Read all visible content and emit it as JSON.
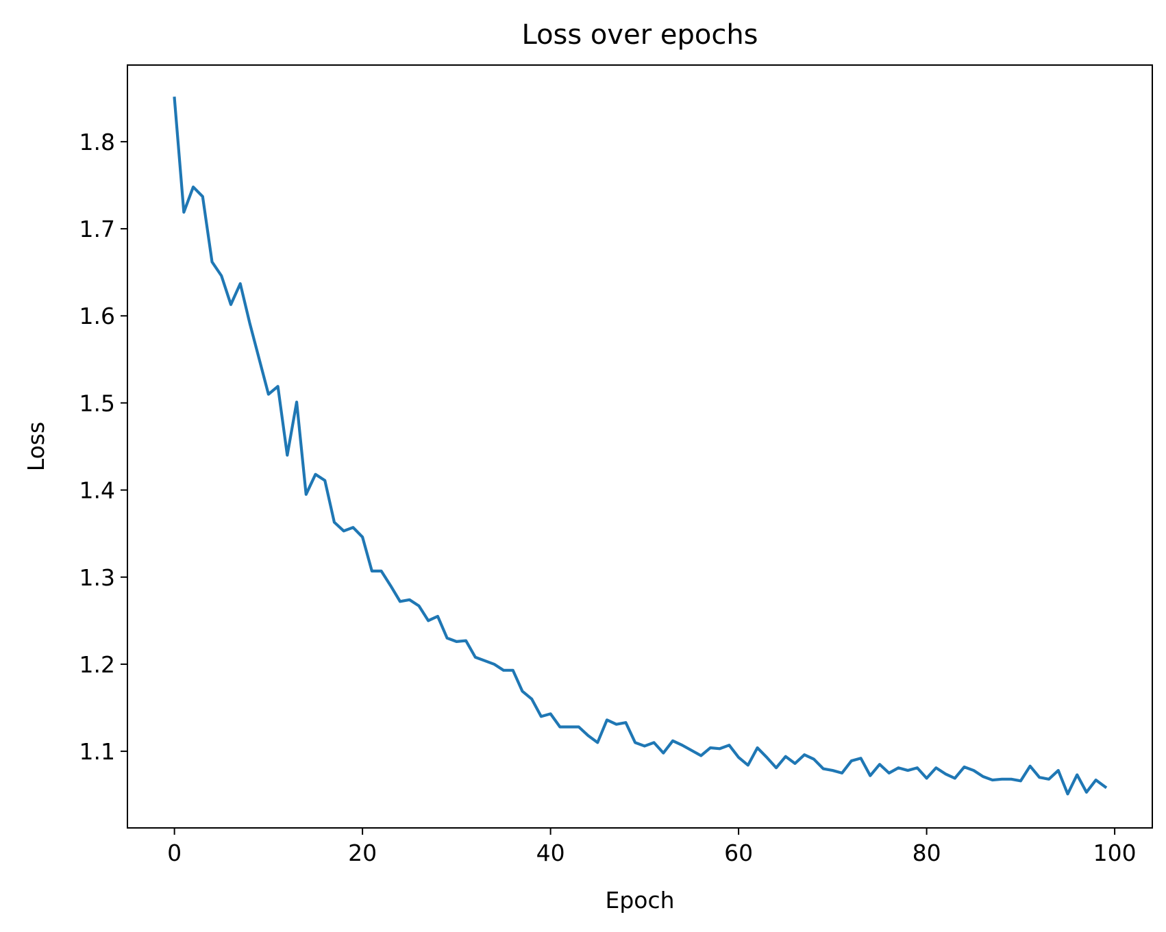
{
  "chart_data": {
    "type": "line",
    "title": "Loss over epochs",
    "xlabel": "Epoch",
    "ylabel": "Loss",
    "xlim": [
      -5,
      104
    ],
    "ylim": [
      1.012,
      1.888
    ],
    "xticks": [
      0,
      20,
      40,
      60,
      80,
      100
    ],
    "yticks": [
      1.1,
      1.2,
      1.3,
      1.4,
      1.5,
      1.6,
      1.7,
      1.8
    ],
    "grid": false,
    "legend": "none",
    "colors": {
      "line": "#1f77b4",
      "axes": "#000000"
    },
    "x": [
      0,
      1,
      2,
      3,
      4,
      5,
      6,
      7,
      8,
      9,
      10,
      11,
      12,
      13,
      14,
      15,
      16,
      17,
      18,
      19,
      20,
      21,
      22,
      23,
      24,
      25,
      26,
      27,
      28,
      29,
      30,
      31,
      32,
      33,
      34,
      35,
      36,
      37,
      38,
      39,
      40,
      41,
      42,
      43,
      44,
      45,
      46,
      47,
      48,
      49,
      50,
      51,
      52,
      53,
      54,
      55,
      56,
      57,
      58,
      59,
      60,
      61,
      62,
      63,
      64,
      65,
      66,
      67,
      68,
      69,
      70,
      71,
      72,
      73,
      74,
      75,
      76,
      77,
      78,
      79,
      80,
      81,
      82,
      83,
      84,
      85,
      86,
      87,
      88,
      89,
      90,
      91,
      92,
      93,
      94,
      95,
      96,
      97,
      98,
      99
    ],
    "series": [
      {
        "values": [
          1.85,
          1.719,
          1.748,
          1.737,
          1.662,
          1.646,
          1.613,
          1.637,
          1.592,
          1.551,
          1.51,
          1.519,
          1.44,
          1.501,
          1.395,
          1.418,
          1.411,
          1.363,
          1.353,
          1.357,
          1.346,
          1.307,
          1.307,
          1.29,
          1.272,
          1.274,
          1.267,
          1.25,
          1.255,
          1.23,
          1.226,
          1.227,
          1.208,
          1.204,
          1.2,
          1.193,
          1.193,
          1.169,
          1.16,
          1.14,
          1.143,
          1.128,
          1.128,
          1.128,
          1.118,
          1.11,
          1.136,
          1.131,
          1.133,
          1.11,
          1.106,
          1.11,
          1.098,
          1.112,
          1.107,
          1.101,
          1.095,
          1.104,
          1.103,
          1.107,
          1.093,
          1.084,
          1.104,
          1.093,
          1.081,
          1.094,
          1.086,
          1.096,
          1.091,
          1.08,
          1.078,
          1.075,
          1.089,
          1.092,
          1.072,
          1.085,
          1.075,
          1.081,
          1.078,
          1.081,
          1.069,
          1.081,
          1.074,
          1.069,
          1.082,
          1.078,
          1.071,
          1.067,
          1.068,
          1.068,
          1.066,
          1.083,
          1.07,
          1.068,
          1.078,
          1.051,
          1.073,
          1.053,
          1.067,
          1.059
        ]
      }
    ]
  }
}
